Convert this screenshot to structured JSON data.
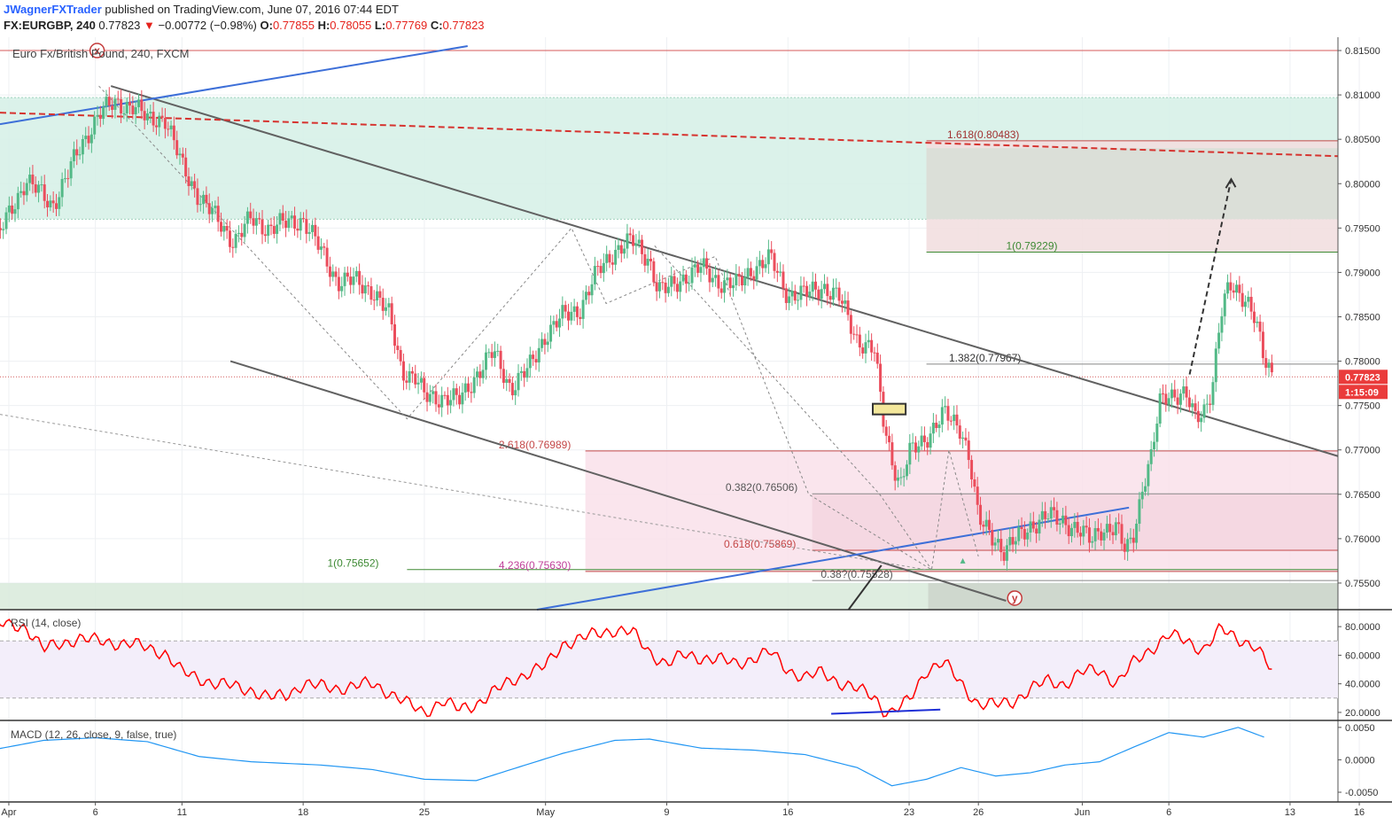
{
  "header": {
    "author": "JWagnerFXTrader",
    "published": "published on TradingView.com, June 07, 2016 07:44 EDT",
    "symbol": "FX:EURGBP, 240",
    "last": "0.77823",
    "change": "−0.00772 (−0.98%)",
    "o_label": "O:",
    "o_value": "0.77855",
    "h_label": "H:",
    "h_value": "0.78055",
    "l_label": "L:",
    "l_value": "0.77769",
    "c_label": "C:",
    "c_value": "0.77823"
  },
  "colors": {
    "up": "#53b987",
    "down": "#eb4d5c",
    "rsi": "#ff0000",
    "macd": "#2196f3",
    "grid": "#eef0f3",
    "trend": "#616161",
    "blue_line": "#3d6fd8",
    "green_zone": "#d5f0e6",
    "pink_zone": "#f9e1ea"
  },
  "chart_data": [
    {
      "type": "candlestick",
      "title": "Euro Fx/British Pound, 240, FXCM",
      "ylim": [
        0.752,
        0.8165
      ],
      "price_ticks": [
        "0.81500",
        "0.81000",
        "0.80500",
        "0.80000",
        "0.79500",
        "0.79000",
        "0.78500",
        "0.78000",
        "0.77500",
        "0.77000",
        "0.76500",
        "0.76000",
        "0.75500"
      ],
      "x_ticks": [
        "Apr",
        "6",
        "11",
        "18",
        "25",
        "May",
        "9",
        "16",
        "23",
        "26",
        "Jun",
        "6",
        "13",
        "16"
      ],
      "x_tick_days": [
        1,
        6,
        11,
        18,
        25,
        32,
        39,
        46,
        53,
        57,
        63,
        68,
        75,
        79
      ],
      "last_price": "0.77823",
      "countdown": "1:15:09",
      "price_path": [
        [
          0,
          0.7925
        ],
        [
          2,
          0.8005
        ],
        [
          3.5,
          0.7975
        ],
        [
          5,
          0.8035
        ],
        [
          6.2,
          0.808
        ],
        [
          7.2,
          0.809
        ],
        [
          8.2,
          0.8088
        ],
        [
          9,
          0.8072
        ],
        [
          10,
          0.8075
        ],
        [
          11,
          0.802
        ],
        [
          12,
          0.7985
        ],
        [
          13,
          0.796
        ],
        [
          14,
          0.7935
        ],
        [
          15,
          0.796
        ],
        [
          16,
          0.795
        ],
        [
          17,
          0.7955
        ],
        [
          18,
          0.796
        ],
        [
          19,
          0.7925
        ],
        [
          20,
          0.789
        ],
        [
          21,
          0.789
        ],
        [
          22,
          0.788
        ],
        [
          23,
          0.785
        ],
        [
          23.7,
          0.779
        ],
        [
          24.5,
          0.778
        ],
        [
          25,
          0.776
        ],
        [
          26,
          0.776
        ],
        [
          27,
          0.7755
        ],
        [
          28,
          0.7785
        ],
        [
          29,
          0.781
        ],
        [
          30,
          0.777
        ],
        [
          31,
          0.779
        ],
        [
          32,
          0.783
        ],
        [
          33,
          0.785
        ],
        [
          34,
          0.786
        ],
        [
          35,
          0.79
        ],
        [
          36,
          0.7925
        ],
        [
          37,
          0.7935
        ],
        [
          38,
          0.7915
        ],
        [
          38.5,
          0.788
        ],
        [
          39,
          0.788
        ],
        [
          40,
          0.7895
        ],
        [
          41,
          0.7905
        ],
        [
          42,
          0.789
        ],
        [
          43,
          0.7885
        ],
        [
          44,
          0.7905
        ],
        [
          45,
          0.7915
        ],
        [
          46,
          0.7875
        ],
        [
          47,
          0.7875
        ],
        [
          48,
          0.7885
        ],
        [
          49,
          0.787
        ],
        [
          50,
          0.7825
        ],
        [
          51,
          0.781
        ],
        [
          51.5,
          0.7735
        ],
        [
          52,
          0.769
        ],
        [
          52.5,
          0.766
        ],
        [
          53,
          0.7695
        ],
        [
          54,
          0.7715
        ],
        [
          55,
          0.774
        ],
        [
          56,
          0.7725
        ],
        [
          56.5,
          0.769
        ],
        [
          57,
          0.762
        ],
        [
          58,
          0.76
        ],
        [
          58.5,
          0.7585
        ],
        [
          59,
          0.7595
        ],
        [
          60,
          0.7615
        ],
        [
          61,
          0.7625
        ],
        [
          62,
          0.762
        ],
        [
          63,
          0.7605
        ],
        [
          63.5,
          0.7598
        ],
        [
          64,
          0.7612
        ],
        [
          65,
          0.761
        ],
        [
          65.5,
          0.7585
        ],
        [
          66,
          0.761
        ],
        [
          66.5,
          0.766
        ],
        [
          67,
          0.769
        ],
        [
          67.5,
          0.7755
        ],
        [
          68,
          0.7765
        ],
        [
          69,
          0.776
        ],
        [
          69.5,
          0.7735
        ],
        [
          70,
          0.7745
        ],
        [
          70.5,
          0.777
        ],
        [
          71,
          0.785
        ],
        [
          71.5,
          0.7885
        ],
        [
          72,
          0.788
        ],
        [
          72.5,
          0.787
        ],
        [
          73,
          0.7845
        ],
        [
          73.5,
          0.78
        ],
        [
          74,
          0.7785
        ]
      ],
      "annotations": [
        {
          "text": "1.618(0.80483)",
          "price": 0.80483
        },
        {
          "text": "1(0.79229)",
          "price": 0.79229
        },
        {
          "text": "1.382(0.77967)",
          "price": 0.77967
        },
        {
          "text": "2.618(0.76989)",
          "price": 0.76989
        },
        {
          "text": "0.382(0.76506)",
          "price": 0.76506
        },
        {
          "text": "0.618(0.75869)",
          "price": 0.75869
        },
        {
          "text": "1(0.75652)",
          "price": 0.75652
        },
        {
          "text": "4.236(0.75630)",
          "price": 0.7563
        },
        {
          "text": "0.38?(0.75528)",
          "price": 0.75528
        }
      ],
      "wave_labels": [
        "x",
        "y"
      ]
    },
    {
      "type": "line",
      "title": "RSI (14, close)",
      "ylim": [
        15,
        90
      ],
      "ticks": [
        "80.0000",
        "60.0000",
        "40.0000",
        "20.0000"
      ],
      "bands": [
        70,
        30
      ],
      "values_path": [
        [
          0,
          82
        ],
        [
          2,
          80
        ],
        [
          3,
          64
        ],
        [
          5,
          72
        ],
        [
          6,
          70
        ],
        [
          8,
          68
        ],
        [
          10,
          62
        ],
        [
          11,
          48
        ],
        [
          13,
          40
        ],
        [
          15,
          36
        ],
        [
          16,
          30
        ],
        [
          17,
          32
        ],
        [
          18,
          40
        ],
        [
          19,
          38
        ],
        [
          20,
          37
        ],
        [
          22,
          40
        ],
        [
          23,
          34
        ],
        [
          24,
          26
        ],
        [
          25,
          20
        ],
        [
          26,
          28
        ],
        [
          27,
          22
        ],
        [
          28,
          26
        ],
        [
          29,
          34
        ],
        [
          30,
          42
        ],
        [
          31,
          48
        ],
        [
          32,
          52
        ],
        [
          33,
          68
        ],
        [
          35,
          75
        ],
        [
          36,
          78
        ],
        [
          37,
          76
        ],
        [
          38,
          62
        ],
        [
          39,
          54
        ],
        [
          40,
          60
        ],
        [
          42,
          57
        ],
        [
          43,
          54
        ],
        [
          44,
          58
        ],
        [
          45,
          62
        ],
        [
          46,
          50
        ],
        [
          47,
          44
        ],
        [
          48,
          48
        ],
        [
          49,
          41
        ],
        [
          50,
          36
        ],
        [
          51,
          31
        ],
        [
          51.5,
          22
        ],
        [
          52,
          20
        ],
        [
          53,
          28
        ],
        [
          54,
          50
        ],
        [
          55,
          55
        ],
        [
          56,
          40
        ],
        [
          57,
          26
        ],
        [
          58,
          25
        ],
        [
          59,
          28
        ],
        [
          60,
          36
        ],
        [
          61,
          42
        ],
        [
          62,
          40
        ],
        [
          63,
          48
        ],
        [
          64,
          50
        ],
        [
          65,
          40
        ],
        [
          66,
          55
        ],
        [
          67,
          65
        ],
        [
          68,
          74
        ],
        [
          69,
          70
        ],
        [
          70,
          64
        ],
        [
          71,
          78
        ],
        [
          72,
          72
        ],
        [
          73,
          66
        ],
        [
          74,
          48
        ]
      ]
    },
    {
      "type": "line",
      "title": "MACD (12, 26, close, 9, false, true)",
      "ylim": [
        -0.0065,
        0.0058
      ],
      "ticks": [
        "0.0050",
        "0.0000",
        "-0.0050"
      ],
      "values_path": [
        [
          0,
          0.0015
        ],
        [
          3,
          0.003
        ],
        [
          6,
          0.0034
        ],
        [
          9,
          0.0028
        ],
        [
          12,
          0.0005
        ],
        [
          15,
          -0.0003
        ],
        [
          19,
          -0.0008
        ],
        [
          22,
          -0.0015
        ],
        [
          25,
          -0.003
        ],
        [
          28,
          -0.0032
        ],
        [
          30,
          -0.0015
        ],
        [
          33,
          0.001
        ],
        [
          36,
          0.003
        ],
        [
          38,
          0.0032
        ],
        [
          41,
          0.0018
        ],
        [
          44,
          0.0015
        ],
        [
          47,
          0.0008
        ],
        [
          50,
          -0.0012
        ],
        [
          52,
          -0.004
        ],
        [
          54,
          -0.003
        ],
        [
          56,
          -0.0012
        ],
        [
          58,
          -0.0025
        ],
        [
          60,
          -0.002
        ],
        [
          62,
          -0.0008
        ],
        [
          64,
          -0.0003
        ],
        [
          66,
          0.002
        ],
        [
          68,
          0.0042
        ],
        [
          70,
          0.0035
        ],
        [
          72,
          0.005
        ],
        [
          73.5,
          0.0035
        ]
      ]
    }
  ]
}
